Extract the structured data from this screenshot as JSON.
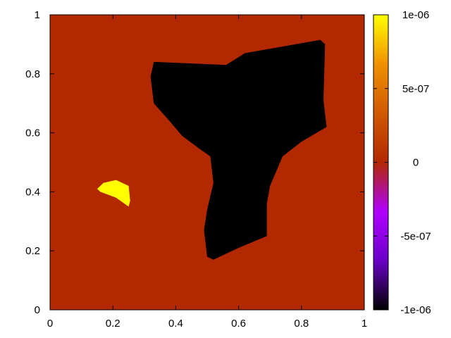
{
  "chart_data": {
    "type": "heatmap",
    "title": "",
    "xlabel": "",
    "ylabel": "",
    "xlim": [
      0,
      1
    ],
    "ylim": [
      0,
      1
    ],
    "x_ticks": [
      "0",
      "0.2",
      "0.4",
      "0.6",
      "0.8",
      "1"
    ],
    "y_ticks": [
      "0",
      "0.2",
      "0.4",
      "0.6",
      "0.8",
      "1"
    ],
    "colorbar": {
      "range": [
        -1e-06,
        1e-06
      ],
      "ticks": [
        "1e-06",
        "5e-07",
        "0",
        "-5e-07",
        "-1e-06"
      ],
      "palette": [
        "#000000",
        "#6a00c8",
        "#b000ff",
        "#b22800",
        "#d05a00",
        "#f09000",
        "#ffff00"
      ]
    },
    "background_value": 0,
    "background_color": "#b22800",
    "regions": [
      {
        "value": -1e-06,
        "color": "#000000",
        "outline": [
          [
            0.34,
            0.84
          ],
          [
            0.56,
            0.83
          ],
          [
            0.62,
            0.87
          ],
          [
            0.86,
            0.915
          ],
          [
            0.875,
            0.9
          ],
          [
            0.87,
            0.71
          ],
          [
            0.88,
            0.62
          ],
          [
            0.8,
            0.57
          ],
          [
            0.74,
            0.52
          ],
          [
            0.7,
            0.42
          ],
          [
            0.69,
            0.36
          ],
          [
            0.69,
            0.25
          ],
          [
            0.6,
            0.21
          ],
          [
            0.52,
            0.17
          ],
          [
            0.5,
            0.18
          ],
          [
            0.49,
            0.27
          ],
          [
            0.5,
            0.34
          ],
          [
            0.52,
            0.43
          ],
          [
            0.51,
            0.52
          ],
          [
            0.47,
            0.55
          ],
          [
            0.42,
            0.59
          ],
          [
            0.38,
            0.64
          ],
          [
            0.33,
            0.7
          ],
          [
            0.32,
            0.79
          ],
          [
            0.33,
            0.84
          ]
        ]
      },
      {
        "value": 1e-06,
        "color": "#ffff00",
        "outline": [
          [
            0.15,
            0.41
          ],
          [
            0.17,
            0.43
          ],
          [
            0.21,
            0.44
          ],
          [
            0.25,
            0.42
          ],
          [
            0.255,
            0.37
          ],
          [
            0.25,
            0.35
          ],
          [
            0.21,
            0.38
          ],
          [
            0.16,
            0.4
          ]
        ]
      }
    ]
  }
}
